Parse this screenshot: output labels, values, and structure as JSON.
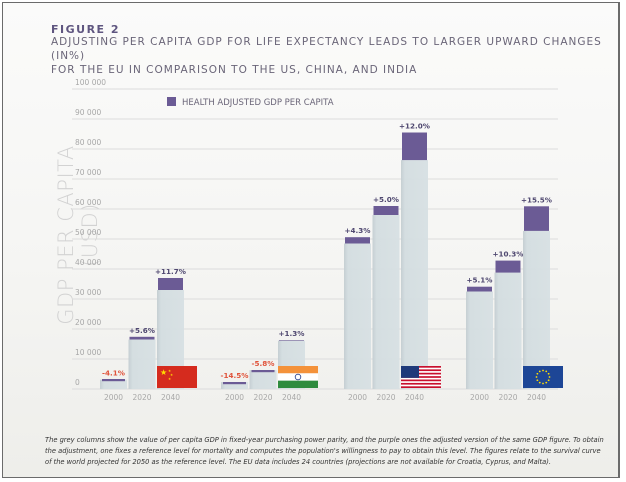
{
  "figure_label": "FIGURE 2",
  "title_line1": "ADJUSTING PER CAPITA GDP FOR LIFE EXPECTANCY LEADS TO LARGER UPWARD CHANGES (IN%)",
  "title_line2": "FOR THE EU IN COMPARISON TO THE US, CHINA, AND INDIA",
  "caption": "The grey columns show the value of per capita GDP in fixed-year purchasing power parity, and the purple ones the adjusted version of the same GDP figure. To obtain the adjustment, one fixes a reference level for mortality and computes the population's willingness to pay to obtain this level. The figures relate to the survival curve of the world projected for 2050 as the reference level. The EU data includes 24 countries (projections are not available for Croatia, Cyprus, and Malta).",
  "colors": {
    "grey_bar": "#d3dde0",
    "purple_bar": "#6b5b95",
    "positive_label": "#4f4870",
    "negative_label": "#e0533a",
    "gridline": "#dcdcdc",
    "tick_text": "#a8a8a8"
  },
  "chart_data": {
    "type": "bar",
    "title": "ADJUSTING PER CAPITA GDP FOR LIFE EXPECTANCY LEADS TO LARGER UPWARD CHANGES (IN%) FOR THE EU IN COMPARISON TO THE US, CHINA, AND INDIA",
    "xlabel": "",
    "ylabel": "GDP PER CAPITA (USD)",
    "ylim": [
      0,
      100000
    ],
    "yticks": [
      0,
      10000,
      20000,
      30000,
      40000,
      50000,
      60000,
      70000,
      80000,
      90000,
      100000
    ],
    "ytick_labels": [
      "0",
      "10 000",
      "20 000",
      "30 000",
      "40 000",
      "50 000",
      "60 000",
      "70 000",
      "80 000",
      "90 000",
      "100 000"
    ],
    "grid": true,
    "legend": {
      "position": "top-left",
      "entries": [
        "HEALTH ADJUSTED GDP PER CAPITA"
      ]
    },
    "categories": [
      "2000",
      "2020",
      "2040"
    ],
    "groups": [
      {
        "name": "China",
        "flag": "china-flag",
        "gdp": [
          3100,
          16500,
          33000
        ],
        "health_adjusted": [
          3000,
          17400,
          37000
        ],
        "changes": [
          "-4.1%",
          "+5.6%",
          "+11.7%"
        ]
      },
      {
        "name": "India",
        "flag": "india-flag",
        "gdp": [
          2300,
          6300,
          16100
        ],
        "health_adjusted": [
          2000,
          6000,
          16300
        ],
        "changes": [
          "-14.5%",
          "-5.8%",
          "+1.3%"
        ]
      },
      {
        "name": "US",
        "flag": "us-flag",
        "gdp": [
          48500,
          58000,
          76300
        ],
        "health_adjusted": [
          50600,
          61000,
          85500
        ],
        "changes": [
          "+4.3%",
          "+5.0%",
          "+12.0%"
        ]
      },
      {
        "name": "EU",
        "flag": "eu-flag",
        "gdp": [
          32500,
          38800,
          52700
        ],
        "health_adjusted": [
          34100,
          42800,
          60900
        ],
        "changes": [
          "+5.1%",
          "+10.3%",
          "+15.5%"
        ]
      }
    ]
  }
}
